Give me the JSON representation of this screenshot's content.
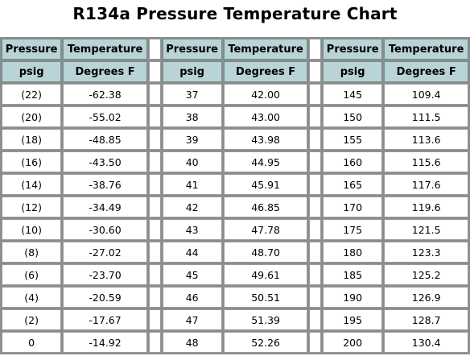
{
  "title": "R134a Pressure Temperature Chart",
  "header": {
    "row1": [
      "Pressure",
      "Temperature",
      "Pressure",
      "Temperature",
      "Pressure",
      "Temperature"
    ],
    "row2": [
      "psig",
      "Degrees F",
      "psig",
      "Degrees F",
      "psig",
      "Degrees F"
    ]
  },
  "rows": [
    [
      "(22)",
      "-62.38",
      "37",
      "42.00",
      "145",
      "109.4"
    ],
    [
      "(20)",
      "-55.02",
      "38",
      "43.00",
      "150",
      "111.5"
    ],
    [
      "(18)",
      "-48.85",
      "39",
      "43.98",
      "155",
      "113.6"
    ],
    [
      "(16)",
      "-43.50",
      "40",
      "44.95",
      "160",
      "115.6"
    ],
    [
      "(14)",
      "-38.76",
      "41",
      "45.91",
      "165",
      "117.6"
    ],
    [
      "(12)",
      "-34.49",
      "42",
      "46.85",
      "170",
      "119.6"
    ],
    [
      "(10)",
      "-30.60",
      "43",
      "47.78",
      "175",
      "121.5"
    ],
    [
      "(8)",
      "-27.02",
      "44",
      "48.70",
      "180",
      "123.3"
    ],
    [
      "(6)",
      "-23.70",
      "45",
      "49.61",
      "185",
      "125.2"
    ],
    [
      "(4)",
      "-20.59",
      "46",
      "50.51",
      "190",
      "126.9"
    ],
    [
      "(2)",
      "-17.67",
      "47",
      "51.39",
      "195",
      "128.7"
    ],
    [
      "0",
      "-14.92",
      "48",
      "52.26",
      "200",
      "130.4"
    ]
  ]
}
